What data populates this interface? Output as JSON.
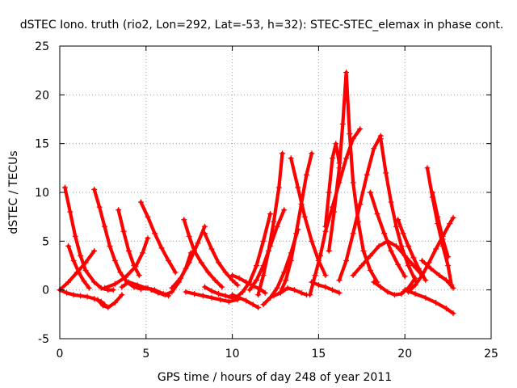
{
  "chart_data": {
    "type": "scatter",
    "title": "dSTEC Iono. truth (rio2, Lon=292, Lat=-53, h=32): STEC-STEC_elemax in phase cont.",
    "xlabel": "GPS time / hours of day 248 of year 2011",
    "ylabel": "dSTEC  / TECUs",
    "xlim": [
      0,
      25
    ],
    "ylim": [
      -5,
      25
    ],
    "xticks": [
      "0",
      "5",
      "10",
      "15",
      "20",
      "25"
    ],
    "yticks": [
      "-5",
      "0",
      "5",
      "10",
      "15",
      "20",
      "25"
    ],
    "xtick_values": [
      0,
      5,
      10,
      15,
      20,
      25
    ],
    "ytick_values": [
      -5,
      0,
      5,
      10,
      15,
      20,
      25
    ],
    "grid": true,
    "marker": "+",
    "series_color": "#ff0000",
    "series": [
      {
        "x": [
          0.3,
          0.6,
          0.9,
          1.2,
          1.5,
          2.0,
          2.4,
          2.8,
          3.1
        ],
        "y": [
          10.5,
          8.0,
          5.5,
          3.5,
          2.0,
          0.8,
          0.2,
          0.0,
          0.0
        ]
      },
      {
        "x": [
          0.0,
          0.4,
          0.8,
          1.2,
          1.6,
          2.0,
          2.4,
          2.6
        ],
        "y": [
          0.0,
          -0.3,
          -0.5,
          -0.6,
          -0.7,
          -0.9,
          -1.2,
          -1.5
        ]
      },
      {
        "x": [
          0.0,
          0.5,
          1.0,
          1.5,
          2.0
        ],
        "y": [
          0.0,
          0.8,
          1.8,
          2.8,
          4.0
        ]
      },
      {
        "x": [
          0.5,
          0.8,
          1.1,
          1.4,
          1.7
        ],
        "y": [
          4.5,
          3.0,
          1.8,
          0.9,
          0.2
        ]
      },
      {
        "x": [
          2.0,
          2.3,
          2.6,
          2.9,
          3.2,
          3.5,
          3.9,
          4.3,
          4.7,
          5.1
        ],
        "y": [
          10.3,
          8.5,
          6.5,
          4.5,
          3.0,
          1.8,
          0.8,
          0.3,
          0.1,
          0.2
        ]
      },
      {
        "x": [
          2.2,
          2.5,
          2.8,
          3.2,
          3.6
        ],
        "y": [
          -1.0,
          -1.6,
          -1.8,
          -1.3,
          -0.5
        ]
      },
      {
        "x": [
          2.6,
          3.2,
          3.8,
          4.4,
          4.8,
          5.1
        ],
        "y": [
          0.2,
          0.6,
          1.3,
          2.4,
          3.8,
          5.3
        ]
      },
      {
        "x": [
          3.4,
          3.7,
          4.0,
          4.3,
          4.6
        ],
        "y": [
          8.2,
          6.0,
          4.0,
          2.5,
          1.5
        ]
      },
      {
        "x": [
          4.7,
          5.1,
          5.5,
          5.9,
          6.3,
          6.7
        ],
        "y": [
          9.0,
          7.5,
          5.8,
          4.3,
          3.0,
          1.8
        ]
      },
      {
        "x": [
          3.6,
          4.0,
          4.5,
          5.0,
          5.5,
          6.0,
          6.3
        ],
        "y": [
          0.3,
          0.8,
          0.5,
          0.2,
          0.0,
          -0.4,
          -0.6
        ]
      },
      {
        "x": [
          5.3,
          5.7,
          6.1,
          6.5,
          6.9,
          7.3,
          7.6
        ],
        "y": [
          0.0,
          -0.3,
          -0.5,
          -0.2,
          0.8,
          2.2,
          3.8
        ]
      },
      {
        "x": [
          7.2,
          7.5,
          7.8,
          8.2,
          8.6,
          9.0,
          9.4
        ],
        "y": [
          7.2,
          5.5,
          4.0,
          2.8,
          1.8,
          1.0,
          0.3
        ]
      },
      {
        "x": [
          6.5,
          7.0,
          7.5,
          8.0,
          8.4
        ],
        "y": [
          0.2,
          1.2,
          2.8,
          4.8,
          6.5
        ]
      },
      {
        "x": [
          7.3,
          7.8,
          8.3,
          8.8,
          9.3,
          9.8,
          10.3
        ],
        "y": [
          -0.2,
          -0.4,
          -0.6,
          -0.8,
          -1.0,
          -1.2,
          -1.0
        ]
      },
      {
        "x": [
          8.4,
          8.8,
          9.2,
          9.6,
          10.0,
          10.3
        ],
        "y": [
          5.8,
          4.2,
          2.8,
          1.8,
          1.0,
          0.5
        ]
      },
      {
        "x": [
          8.4,
          8.8,
          9.2,
          9.6,
          10.0
        ],
        "y": [
          0.3,
          -0.1,
          -0.4,
          -0.6,
          -0.8
        ]
      },
      {
        "x": [
          10.0,
          10.4,
          10.8,
          11.2,
          11.5
        ],
        "y": [
          -0.5,
          -0.8,
          -1.1,
          -1.5,
          -1.8
        ]
      },
      {
        "x": [
          10.0,
          10.4,
          10.8,
          11.2,
          11.6,
          11.9
        ],
        "y": [
          1.5,
          1.2,
          0.8,
          0.4,
          0.1,
          -0.3
        ]
      },
      {
        "x": [
          10.2,
          10.6,
          11.0,
          11.4,
          11.8,
          12.2
        ],
        "y": [
          -0.8,
          -0.2,
          0.8,
          2.5,
          5.0,
          7.8
        ]
      },
      {
        "x": [
          11.0,
          11.4,
          11.8,
          12.2,
          12.6,
          13.0
        ],
        "y": [
          0.0,
          1.0,
          2.5,
          4.5,
          6.5,
          8.2
        ]
      },
      {
        "x": [
          11.8,
          12.2,
          12.6,
          13.0,
          13.4,
          13.8
        ],
        "y": [
          -1.5,
          -0.8,
          0.2,
          1.8,
          3.8,
          6.2
        ]
      },
      {
        "x": [
          11.5,
          11.8,
          12.1,
          12.4,
          12.7,
          12.9
        ],
        "y": [
          -0.5,
          1.5,
          4.0,
          7.0,
          10.5,
          14.0
        ]
      },
      {
        "x": [
          12.4,
          12.8,
          13.2,
          13.6,
          14.0,
          14.3
        ],
        "y": [
          -0.6,
          -0.3,
          0.2,
          0.0,
          -0.3,
          -0.5
        ]
      },
      {
        "x": [
          12.8,
          13.1,
          13.4,
          13.7,
          14.0,
          14.3,
          14.6
        ],
        "y": [
          -0.2,
          1.0,
          3.0,
          5.8,
          8.8,
          11.8,
          14.0
        ]
      },
      {
        "x": [
          13.4,
          13.8,
          14.2,
          14.6,
          15.0,
          15.4
        ],
        "y": [
          13.5,
          10.5,
          7.5,
          5.0,
          3.0,
          1.5
        ]
      },
      {
        "x": [
          14.5,
          14.8,
          15.1,
          15.4,
          15.8,
          16.2,
          16.6,
          17.0,
          17.4
        ],
        "y": [
          -0.5,
          1.5,
          3.5,
          6.0,
          8.5,
          11.0,
          13.5,
          15.5,
          16.5
        ]
      },
      {
        "x": [
          15.6,
          15.9,
          16.2,
          16.4,
          16.6,
          16.8,
          17.0,
          17.3,
          17.6,
          18.0,
          18.4
        ],
        "y": [
          4.0,
          8.0,
          12.5,
          17.0,
          22.3,
          16.0,
          11.0,
          7.0,
          4.0,
          2.0,
          0.8
        ]
      },
      {
        "x": [
          15.4,
          15.6,
          15.8,
          16.0,
          16.2
        ],
        "y": [
          6.5,
          10.0,
          13.5,
          15.0,
          13.0
        ]
      },
      {
        "x": [
          14.6,
          15.0,
          15.4,
          15.8,
          16.2
        ],
        "y": [
          0.8,
          0.5,
          0.3,
          0.0,
          -0.3
        ]
      },
      {
        "x": [
          16.2,
          16.6,
          17.0,
          17.4,
          17.8,
          18.2,
          18.6
        ],
        "y": [
          1.0,
          3.0,
          5.8,
          8.8,
          11.8,
          14.5,
          15.8
        ]
      },
      {
        "x": [
          18.6,
          18.9,
          19.2,
          19.5,
          19.8,
          20.2,
          20.6
        ],
        "y": [
          15.5,
          12.0,
          9.0,
          6.5,
          4.5,
          2.5,
          1.0
        ]
      },
      {
        "x": [
          17.0,
          17.5,
          18.0,
          18.5,
          19.0,
          19.5,
          20.0,
          20.5,
          21.0
        ],
        "y": [
          1.5,
          2.5,
          3.5,
          4.5,
          5.0,
          4.5,
          3.5,
          2.5,
          1.5
        ]
      },
      {
        "x": [
          18.0,
          18.4,
          18.8,
          19.2,
          19.6,
          20.0
        ],
        "y": [
          10.0,
          7.8,
          5.8,
          4.0,
          2.6,
          1.4
        ]
      },
      {
        "x": [
          18.2,
          18.6,
          19.0,
          19.4,
          19.8,
          20.2,
          20.6
        ],
        "y": [
          0.8,
          0.3,
          -0.2,
          -0.5,
          -0.4,
          0.2,
          1.2
        ]
      },
      {
        "x": [
          19.6,
          19.9,
          20.2,
          20.5,
          20.8,
          21.2
        ],
        "y": [
          7.2,
          5.8,
          4.5,
          3.3,
          2.2,
          1.0
        ]
      },
      {
        "x": [
          20.2,
          20.6,
          21.0,
          21.4,
          21.8,
          22.2,
          22.6,
          22.8
        ],
        "y": [
          -0.2,
          0.5,
          1.5,
          2.8,
          4.2,
          5.5,
          6.8,
          7.4
        ]
      },
      {
        "x": [
          21.3,
          21.6,
          21.9,
          22.2,
          22.5,
          22.7
        ],
        "y": [
          12.5,
          9.5,
          6.8,
          4.5,
          2.5,
          0.5
        ]
      },
      {
        "x": [
          21.6,
          21.9,
          22.2,
          22.5
        ],
        "y": [
          10.0,
          7.5,
          5.2,
          3.4
        ]
      },
      {
        "x": [
          20.0,
          20.6,
          21.2,
          21.8,
          22.4,
          22.8
        ],
        "y": [
          0.0,
          -0.4,
          -0.8,
          -1.3,
          -1.9,
          -2.4
        ]
      },
      {
        "x": [
          21.0,
          21.5,
          22.0,
          22.4,
          22.8
        ],
        "y": [
          3.0,
          2.2,
          1.5,
          1.0,
          0.2
        ]
      }
    ]
  }
}
